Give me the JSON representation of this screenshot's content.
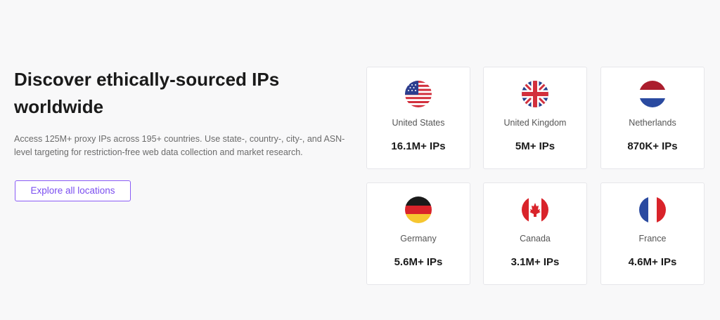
{
  "header": {
    "title": "Discover ethically-sourced IPs worldwide",
    "description": "Access 125M+ proxy IPs across 195+ countries. Use state-, country-, city-, and ASN-level targeting for restriction-free web data collection and market research.",
    "button": "Explore all locations"
  },
  "countries": [
    {
      "name": "United States",
      "ips": "16.1M+ IPs"
    },
    {
      "name": "United Kingdom",
      "ips": "5M+ IPs"
    },
    {
      "name": "Netherlands",
      "ips": "870K+ IPs"
    },
    {
      "name": "Germany",
      "ips": "5.6M+ IPs"
    },
    {
      "name": "Canada",
      "ips": "3.1M+ IPs"
    },
    {
      "name": "France",
      "ips": "4.6M+ IPs"
    }
  ]
}
